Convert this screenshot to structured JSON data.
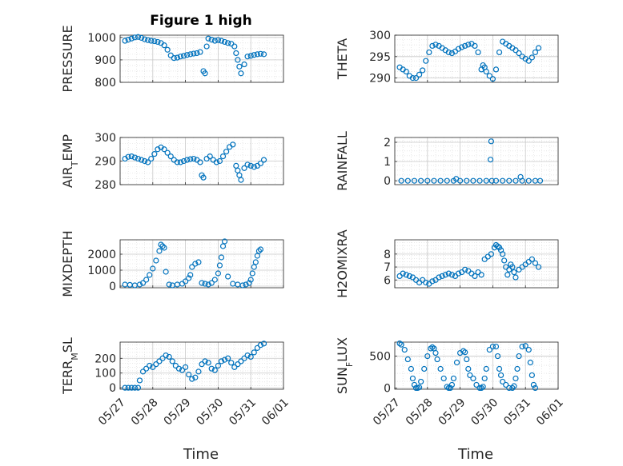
{
  "figure": {
    "title": "Figure 1 high",
    "xlabel": "Time"
  },
  "colors": {
    "marker": "#0072BD",
    "grid": "#d9d9d9",
    "axis": "#262626"
  },
  "x_ticks": [
    "05/27",
    "05/28",
    "05/29",
    "05/30",
    "05/31",
    "06/01"
  ],
  "chart_data": [
    {
      "type": "scatter",
      "ylabel": "PRESSURE",
      "title": "Figure 1 high",
      "ylim": [
        800,
        1010
      ],
      "yticks": [
        800,
        900,
        1000
      ],
      "grid": true,
      "x": [
        0.15,
        0.25,
        0.35,
        0.45,
        0.55,
        0.65,
        0.75,
        0.85,
        0.95,
        1.05,
        1.15,
        1.25,
        1.35,
        1.45,
        1.55,
        1.65,
        1.75,
        1.85,
        1.95,
        2.05,
        2.15,
        2.25,
        2.35,
        2.45,
        2.55,
        2.6,
        2.65,
        2.7,
        2.8,
        2.9,
        3.0,
        3.1,
        3.2,
        3.3,
        3.4,
        3.5,
        3.55,
        3.6,
        3.65,
        3.7,
        3.8,
        3.9,
        4.0,
        4.1,
        4.2,
        4.3,
        4.4
      ],
      "y": [
        985,
        990,
        995,
        1000,
        1002,
        998,
        992,
        988,
        985,
        983,
        980,
        975,
        965,
        945,
        920,
        908,
        910,
        915,
        918,
        922,
        925,
        928,
        930,
        935,
        850,
        840,
        960,
        995,
        990,
        985,
        988,
        985,
        980,
        975,
        972,
        960,
        930,
        900,
        870,
        840,
        880,
        915,
        918,
        922,
        925,
        927,
        925
      ]
    },
    {
      "type": "scatter",
      "ylabel": "THETA",
      "ylim": [
        289,
        300
      ],
      "yticks": [
        290,
        295,
        300
      ],
      "grid": true,
      "x": [
        0.15,
        0.25,
        0.35,
        0.45,
        0.55,
        0.65,
        0.75,
        0.85,
        0.95,
        1.05,
        1.15,
        1.25,
        1.35,
        1.45,
        1.55,
        1.65,
        1.75,
        1.85,
        1.95,
        2.05,
        2.15,
        2.25,
        2.35,
        2.45,
        2.55,
        2.65,
        2.7,
        2.75,
        2.8,
        2.9,
        3.0,
        3.1,
        3.2,
        3.3,
        3.4,
        3.5,
        3.6,
        3.7,
        3.8,
        3.9,
        4.0,
        4.1,
        4.2,
        4.3,
        4.4
      ],
      "y": [
        292.5,
        292,
        291.5,
        290.5,
        290,
        290,
        290.8,
        291.8,
        294,
        296,
        297.5,
        297.8,
        297.5,
        297,
        296.5,
        296,
        295.8,
        296.2,
        296.8,
        297.2,
        297.5,
        297.8,
        298,
        297.5,
        296,
        292,
        293,
        292.5,
        291.5,
        290.5,
        289.8,
        292,
        296,
        298.5,
        298,
        297.5,
        297,
        296.5,
        295.8,
        295,
        294.5,
        294,
        294.8,
        296,
        297
      ]
    },
    {
      "type": "scatter",
      "ylabel": "AIR_TEMP",
      "ylim": [
        280,
        300
      ],
      "yticks": [
        280,
        290,
        300
      ],
      "grid": true,
      "x": [
        0.15,
        0.25,
        0.35,
        0.45,
        0.55,
        0.65,
        0.75,
        0.85,
        0.95,
        1.05,
        1.15,
        1.25,
        1.35,
        1.45,
        1.55,
        1.65,
        1.75,
        1.85,
        1.95,
        2.05,
        2.15,
        2.25,
        2.35,
        2.45,
        2.5,
        2.55,
        2.65,
        2.75,
        2.85,
        2.95,
        3.05,
        3.15,
        3.25,
        3.35,
        3.45,
        3.55,
        3.6,
        3.65,
        3.7,
        3.8,
        3.9,
        4.0,
        4.1,
        4.2,
        4.3,
        4.4
      ],
      "y": [
        291,
        291.8,
        292,
        291.5,
        291,
        290.5,
        290,
        289.5,
        291,
        293,
        295,
        295.8,
        295,
        293.5,
        292,
        290.5,
        289.5,
        289.5,
        290,
        290.5,
        290.8,
        291,
        290.5,
        289.5,
        284,
        283,
        291,
        292,
        290.5,
        289.5,
        290,
        292,
        294,
        296,
        297,
        288,
        286,
        284,
        282,
        287,
        288.5,
        288,
        287.5,
        288,
        289,
        290.5
      ]
    },
    {
      "type": "scatter",
      "ylabel": "RAINFALL",
      "ylim": [
        -0.2,
        2.25
      ],
      "yticks": [
        0,
        1,
        2
      ],
      "grid": true,
      "x": [
        0.2,
        0.4,
        0.6,
        0.8,
        1.0,
        1.2,
        1.4,
        1.6,
        1.8,
        1.88,
        2.0,
        2.2,
        2.4,
        2.6,
        2.8,
        2.93,
        2.95,
        2.97,
        3.1,
        3.3,
        3.5,
        3.7,
        3.85,
        3.9,
        4.1,
        4.3,
        4.45
      ],
      "y": [
        0,
        0,
        0,
        0,
        0,
        0,
        0,
        0,
        0,
        0.1,
        0,
        0,
        0,
        0,
        0,
        1.1,
        2.05,
        0,
        0,
        0,
        0,
        0,
        0.2,
        0,
        0,
        0,
        0
      ]
    },
    {
      "type": "scatter",
      "ylabel": "MIXDEPTH",
      "ylim": [
        -100,
        2900
      ],
      "yticks": [
        0,
        1000,
        2000
      ],
      "grid": true,
      "x": [
        0.15,
        0.3,
        0.45,
        0.6,
        0.7,
        0.8,
        0.9,
        1.0,
        1.1,
        1.2,
        1.25,
        1.3,
        1.35,
        1.4,
        1.5,
        1.6,
        1.75,
        1.9,
        2.0,
        2.1,
        2.15,
        2.2,
        2.3,
        2.4,
        2.5,
        2.6,
        2.7,
        2.8,
        2.9,
        3.0,
        3.05,
        3.1,
        3.15,
        3.2,
        3.3,
        3.45,
        3.6,
        3.75,
        3.85,
        3.95,
        4.0,
        4.05,
        4.1,
        4.15,
        4.2,
        4.25,
        4.3
      ],
      "y": [
        100,
        80,
        50,
        100,
        200,
        400,
        700,
        1100,
        1600,
        2200,
        2600,
        2500,
        2400,
        900,
        100,
        50,
        100,
        150,
        300,
        500,
        700,
        1200,
        1400,
        1500,
        200,
        150,
        100,
        200,
        400,
        800,
        1300,
        1800,
        2500,
        2800,
        600,
        150,
        100,
        50,
        100,
        200,
        400,
        800,
        1200,
        1500,
        1900,
        2200,
        2300
      ]
    },
    {
      "type": "scatter",
      "ylabel": "H2OMIXRA",
      "ylim": [
        5.4,
        9.1
      ],
      "yticks": [
        6,
        7,
        8
      ],
      "grid": true,
      "x": [
        0.15,
        0.25,
        0.35,
        0.45,
        0.55,
        0.65,
        0.75,
        0.85,
        0.95,
        1.05,
        1.15,
        1.25,
        1.35,
        1.45,
        1.55,
        1.65,
        1.75,
        1.85,
        1.95,
        2.05,
        2.15,
        2.25,
        2.35,
        2.45,
        2.55,
        2.65,
        2.75,
        2.85,
        2.95,
        3.05,
        3.1,
        3.15,
        3.2,
        3.25,
        3.3,
        3.35,
        3.4,
        3.45,
        3.5,
        3.55,
        3.6,
        3.65,
        3.7,
        3.8,
        3.9,
        4.0,
        4.1,
        4.2,
        4.3,
        4.4
      ],
      "y": [
        6.3,
        6.5,
        6.4,
        6.3,
        6.2,
        6.0,
        5.8,
        6.0,
        5.8,
        5.7,
        5.9,
        6.0,
        6.2,
        6.3,
        6.4,
        6.5,
        6.4,
        6.3,
        6.5,
        6.6,
        6.8,
        6.7,
        6.5,
        6.3,
        6.6,
        6.4,
        7.6,
        7.8,
        8.0,
        8.5,
        8.7,
        8.6,
        8.5,
        8.3,
        8.0,
        7.5,
        7.0,
        6.4,
        6.8,
        7.2,
        7.0,
        6.6,
        6.2,
        6.8,
        7.0,
        7.2,
        7.4,
        7.6,
        7.3,
        7.0
      ]
    },
    {
      "type": "scatter",
      "ylabel": "TERR_MSL",
      "ylim": [
        -10,
        310
      ],
      "yticks": [
        0,
        100,
        200
      ],
      "grid": true,
      "x": [
        0.15,
        0.25,
        0.35,
        0.45,
        0.55,
        0.6,
        0.7,
        0.8,
        0.9,
        1.0,
        1.1,
        1.2,
        1.3,
        1.4,
        1.5,
        1.6,
        1.7,
        1.8,
        1.9,
        2.0,
        2.1,
        2.2,
        2.3,
        2.4,
        2.5,
        2.6,
        2.7,
        2.8,
        2.9,
        3.0,
        3.1,
        3.2,
        3.3,
        3.4,
        3.5,
        3.6,
        3.7,
        3.8,
        3.9,
        4.0,
        4.1,
        4.2,
        4.3,
        4.4
      ],
      "y": [
        0,
        0,
        0,
        0,
        0,
        50,
        110,
        130,
        150,
        140,
        160,
        180,
        200,
        220,
        210,
        180,
        150,
        130,
        120,
        140,
        90,
        60,
        70,
        110,
        160,
        180,
        170,
        130,
        120,
        150,
        180,
        190,
        200,
        170,
        140,
        160,
        180,
        200,
        220,
        210,
        240,
        270,
        290,
        300
      ]
    },
    {
      "type": "scatter",
      "ylabel": "SUN_FLUX",
      "ylim": [
        -20,
        720
      ],
      "yticks": [
        0,
        500
      ],
      "grid": true,
      "x": [
        0.15,
        0.2,
        0.3,
        0.4,
        0.5,
        0.55,
        0.6,
        0.65,
        0.7,
        0.75,
        0.8,
        0.9,
        1.0,
        1.1,
        1.15,
        1.2,
        1.25,
        1.3,
        1.4,
        1.5,
        1.6,
        1.65,
        1.7,
        1.75,
        1.8,
        1.9,
        2.0,
        2.1,
        2.15,
        2.2,
        2.25,
        2.3,
        2.4,
        2.5,
        2.6,
        2.65,
        2.7,
        2.75,
        2.8,
        2.9,
        3.0,
        3.1,
        3.15,
        3.2,
        3.25,
        3.3,
        3.4,
        3.5,
        3.6,
        3.65,
        3.7,
        3.75,
        3.8,
        3.9,
        4.0,
        4.1,
        4.15,
        4.2,
        4.25,
        4.3
      ],
      "y": [
        700,
        680,
        600,
        450,
        300,
        150,
        50,
        0,
        0,
        10,
        100,
        300,
        500,
        620,
        640,
        620,
        550,
        450,
        300,
        150,
        20,
        0,
        0,
        50,
        150,
        400,
        550,
        580,
        560,
        450,
        300,
        200,
        150,
        50,
        0,
        0,
        20,
        150,
        300,
        600,
        650,
        650,
        500,
        300,
        200,
        100,
        50,
        0,
        0,
        30,
        150,
        300,
        500,
        650,
        660,
        600,
        400,
        200,
        50,
        0
      ]
    }
  ]
}
